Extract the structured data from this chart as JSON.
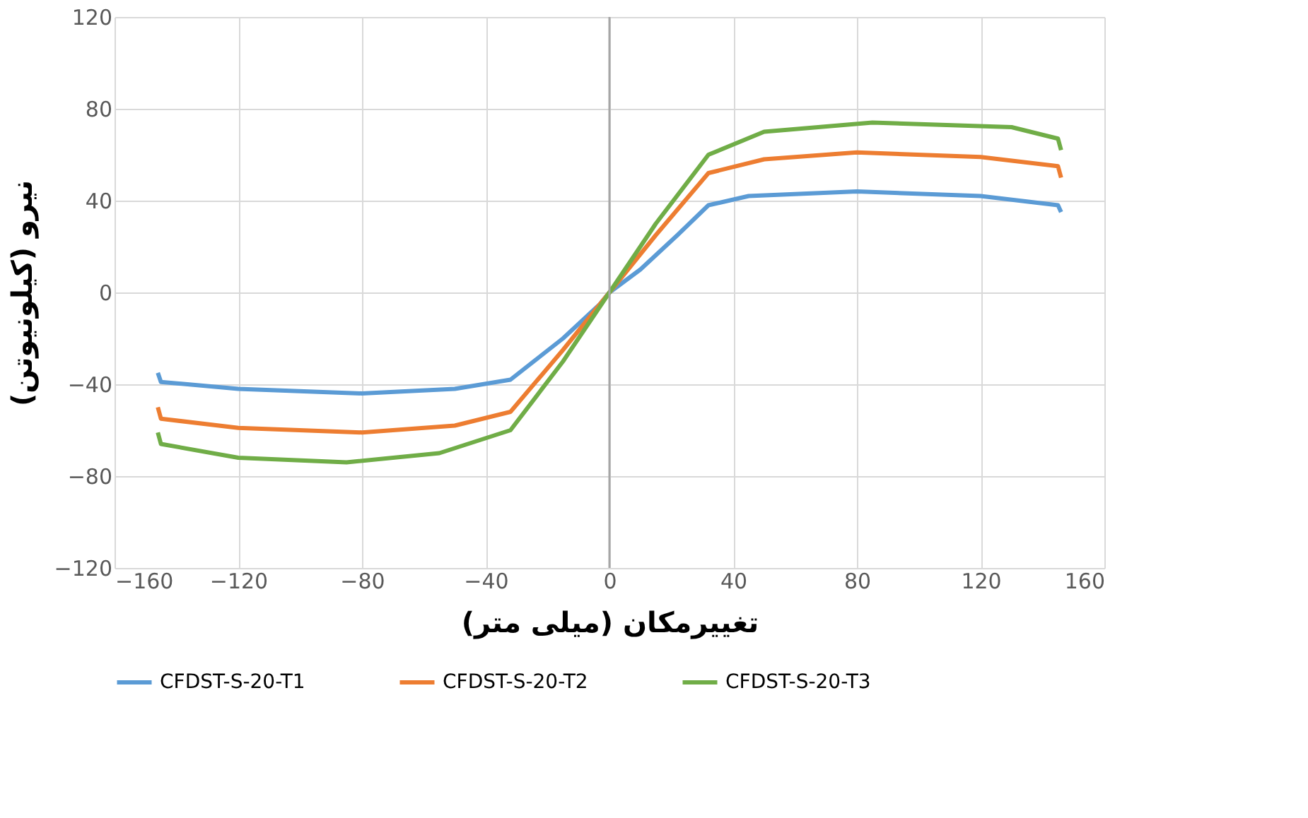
{
  "chart_data": {
    "type": "line",
    "xlabel": "تغییرمکان (میلی متر)",
    "ylabel": "نیرو (کیلونیوتن)",
    "xlim": [
      -160,
      160
    ],
    "xticks": [
      -160,
      -120,
      -80,
      -40,
      0,
      40,
      80,
      120,
      160
    ],
    "ylim": [
      -120,
      120
    ],
    "yticks": [
      -120,
      -80,
      -40,
      0,
      40,
      80,
      120
    ],
    "grid": true,
    "legend": "bottom",
    "line_style": "solid",
    "marker": "none",
    "ref_lines": [
      {
        "axis": "x",
        "value": 0,
        "color": "#a6a6a6"
      }
    ],
    "series": [
      {
        "name": "CFDST-S-20-T1",
        "color": "#5b9bd5",
        "x": [
          -146,
          -145,
          -120,
          -80,
          -50,
          -32,
          -15,
          -3,
          0,
          10,
          22,
          32,
          45,
          80,
          120,
          145,
          146
        ],
        "values": [
          -35,
          -39,
          -42,
          -44,
          -42,
          -38,
          -20,
          -5,
          0,
          10,
          25,
          38,
          42,
          44,
          42,
          38,
          35
        ]
      },
      {
        "name": "CFDST-S-20-T2",
        "color": "#ed7d31",
        "x": [
          -146,
          -145,
          -120,
          -80,
          -50,
          -32,
          -15,
          0,
          15,
          32,
          50,
          80,
          120,
          145,
          146
        ],
        "values": [
          -50,
          -55,
          -59,
          -61,
          -58,
          -52,
          -25,
          0,
          25,
          52,
          58,
          61,
          59,
          55,
          50
        ]
      },
      {
        "name": "CFDST-S-20-T3",
        "color": "#70ad47",
        "x": [
          -146,
          -145,
          -120,
          -85,
          -55,
          -32,
          -15,
          0,
          15,
          32,
          50,
          85,
          130,
          145,
          146
        ],
        "values": [
          -61,
          -66,
          -72,
          -74,
          -70,
          -60,
          -30,
          0,
          30,
          60,
          70,
          74,
          72,
          67,
          62
        ]
      }
    ]
  }
}
